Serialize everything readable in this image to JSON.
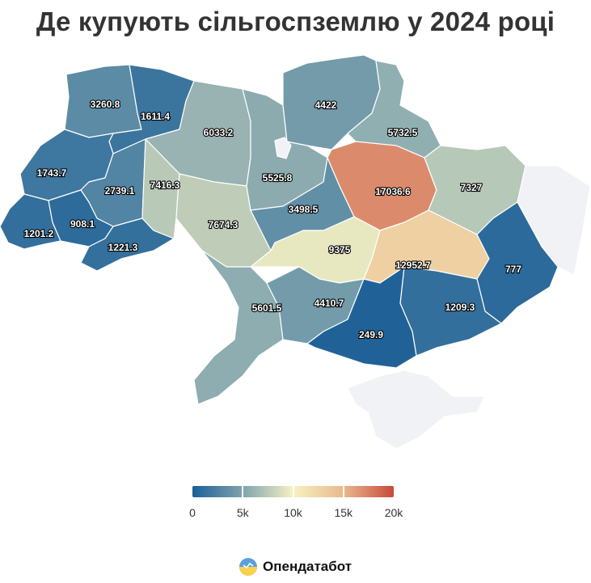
{
  "title": "Де купують сільгоспземлю у 2024 році",
  "colors": {
    "scale": [
      "#1b5f97",
      "#7fa3ad",
      "#f6f2c2",
      "#e9b88d",
      "#c74a3c"
    ],
    "no_data": "#f1f2f6",
    "border": "#ffffff"
  },
  "legend": {
    "min": 0,
    "max": 20000,
    "ticks": [
      {
        "value": 0,
        "label": "0"
      },
      {
        "value": 5000,
        "label": "5k"
      },
      {
        "value": 10000,
        "label": "10k"
      },
      {
        "value": 15000,
        "label": "15k"
      },
      {
        "value": 20000,
        "label": "20k"
      }
    ]
  },
  "brand": {
    "name": "Опендатабот",
    "icon": "opendatabot-logo-icon"
  },
  "chart_data": {
    "type": "choropleth",
    "regions": [
      {
        "id": "lviv",
        "value": 1743.7,
        "label": "1743.7"
      },
      {
        "id": "volyn",
        "value": 3260.8,
        "label": "3260.8"
      },
      {
        "id": "rivne",
        "value": 1611.4,
        "label": "1611.4"
      },
      {
        "id": "zhytomyr",
        "value": 6033.2,
        "label": "6033.2"
      },
      {
        "id": "kyiv",
        "value": 5525.8,
        "label": "5525.8"
      },
      {
        "id": "chernihiv",
        "value": 4422,
        "label": "4422"
      },
      {
        "id": "sumy",
        "value": 5732.5,
        "label": "5732.5"
      },
      {
        "id": "ternopil",
        "value": 2739.1,
        "label": "2739.1"
      },
      {
        "id": "khmelnytskyi",
        "value": 7416.3,
        "label": "7416.3"
      },
      {
        "id": "vinnytsia",
        "value": 7674.3,
        "label": "7674.3"
      },
      {
        "id": "cherkasy",
        "value": 3498.5,
        "label": "3498.5"
      },
      {
        "id": "poltava",
        "value": 17036.6,
        "label": "17036.6"
      },
      {
        "id": "kharkiv",
        "value": 7327,
        "label": "7327"
      },
      {
        "id": "zakarpattia",
        "value": 1201.2,
        "label": "1201.2"
      },
      {
        "id": "ivano-frankivsk",
        "value": 908.1,
        "label": "908.1"
      },
      {
        "id": "chernivtsi",
        "value": 1221.3,
        "label": "1221.3"
      },
      {
        "id": "kirovohrad",
        "value": 9375,
        "label": "9375"
      },
      {
        "id": "dnipropetrovsk",
        "value": 12952.7,
        "label": "12952.7"
      },
      {
        "id": "donetsk",
        "value": 777,
        "label": "777"
      },
      {
        "id": "odesa",
        "value": 5601.5,
        "label": "5601.5"
      },
      {
        "id": "mykolaiv",
        "value": 4410.7,
        "label": "4410.7"
      },
      {
        "id": "zaporizhzhia",
        "value": 1209.3,
        "label": "1209.3"
      },
      {
        "id": "kherson",
        "value": 249.9,
        "label": "249.9"
      },
      {
        "id": "luhansk",
        "value": null,
        "label": ""
      },
      {
        "id": "crimea",
        "value": null,
        "label": ""
      },
      {
        "id": "kyiv-city",
        "value": null,
        "label": ""
      }
    ]
  }
}
